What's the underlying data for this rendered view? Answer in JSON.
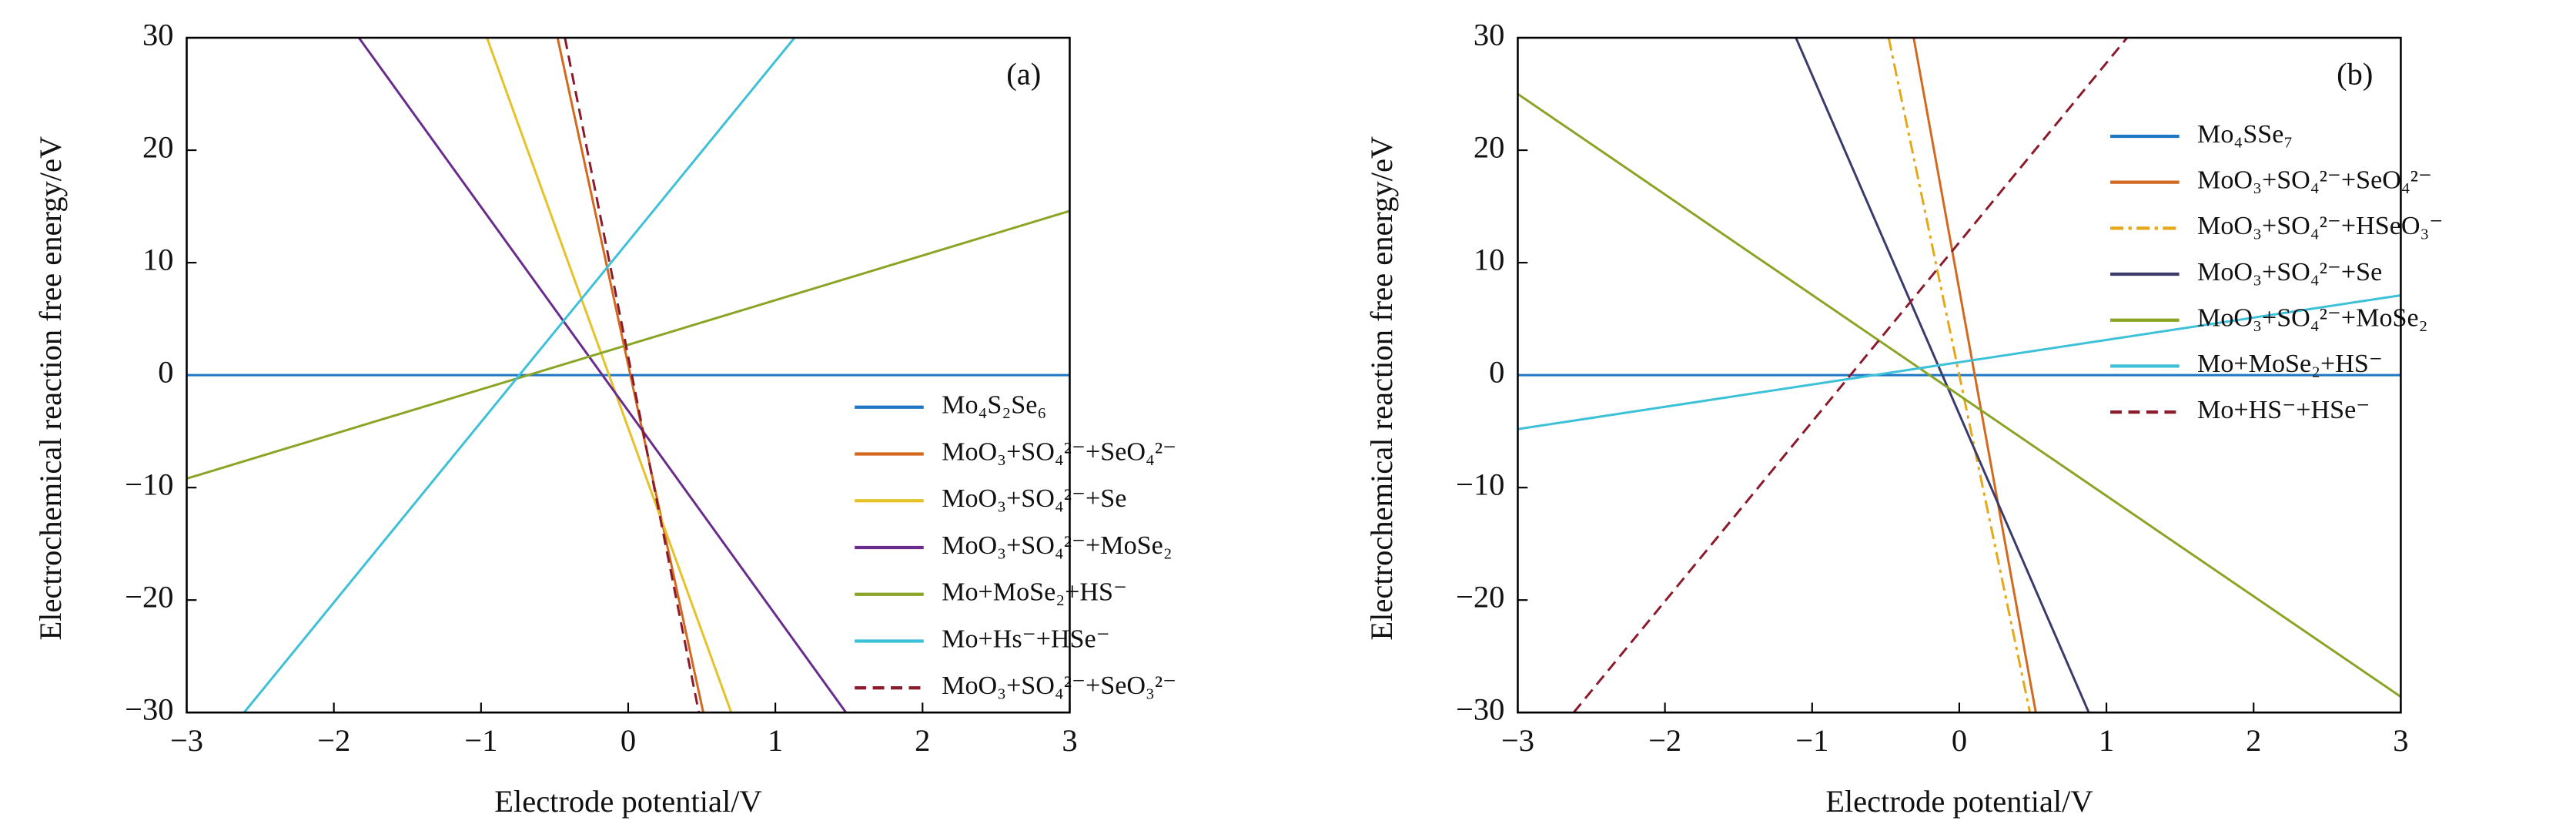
{
  "chart_data": [
    {
      "type": "line",
      "annotation": "(a)",
      "xlabel": "Electrode potential/V",
      "ylabel": "Electrochemical reaction free energy/eV",
      "xlim": [
        -3,
        3
      ],
      "ylim": [
        -30,
        30
      ],
      "xticks": [
        {
          "value": -3,
          "label": "−3"
        },
        {
          "value": -2,
          "label": "−2"
        },
        {
          "value": -1,
          "label": "−1"
        },
        0,
        1,
        2,
        3
      ],
      "yticks": [
        {
          "value": -30,
          "label": "−30"
        },
        {
          "value": -20,
          "label": "−20"
        },
        {
          "value": -10,
          "label": "−10"
        },
        0,
        10,
        20,
        30
      ],
      "legend": "lower right",
      "series": [
        {
          "name": "Mo₄S₂Se₆",
          "color": "#1f77c4",
          "dash": "solid",
          "x": [
            -3,
            3
          ],
          "values": [
            0,
            0
          ]
        },
        {
          "name": "MoO₃+SO₄²⁻+SeO₄²⁻",
          "color": "#d2691e",
          "dash": "solid",
          "x": [
            -0.48,
            0.51
          ],
          "values": [
            30,
            -30
          ]
        },
        {
          "name": "MoO₃+SO₄²⁻+Se",
          "color": "#e6c229",
          "dash": "solid",
          "x": [
            -0.96,
            0.7
          ],
          "values": [
            30,
            -30
          ]
        },
        {
          "name": "MoO₃+SO₄²⁻+MoSe₂",
          "color": "#6a2c8c",
          "dash": "solid",
          "x": [
            -1.83,
            1.48
          ],
          "values": [
            30,
            -30
          ]
        },
        {
          "name": "Mo+MoSe₂+HS⁻",
          "color": "#8aa526",
          "dash": "solid",
          "x": [
            -3,
            3
          ],
          "values": [
            -9.2,
            14.6
          ]
        },
        {
          "name": "Mo+Hs⁻+HSe⁻",
          "color": "#3cc1d8",
          "dash": "solid",
          "x": [
            -2.61,
            1.13
          ],
          "values": [
            -30,
            30
          ]
        },
        {
          "name": "MoO₃+SO₄²⁻+SeO₃²⁻",
          "color": "#8b1a2b",
          "dash": "dashed",
          "x": [
            -0.43,
            0.48
          ],
          "values": [
            30,
            -30
          ]
        }
      ]
    },
    {
      "type": "line",
      "annotation": "(b)",
      "xlabel": "Electrode potential/V",
      "ylabel": "Electrochemical reaction free energy/eV",
      "xlim": [
        -3,
        3
      ],
      "ylim": [
        -30,
        30
      ],
      "xticks": [
        {
          "value": -3,
          "label": "−3"
        },
        {
          "value": -2,
          "label": "−2"
        },
        {
          "value": -1,
          "label": "−1"
        },
        0,
        1,
        2,
        3
      ],
      "yticks": [
        {
          "value": -30,
          "label": "−30"
        },
        {
          "value": -20,
          "label": "−20"
        },
        {
          "value": -10,
          "label": "−10"
        },
        0,
        10,
        20,
        30
      ],
      "legend": "upper right",
      "series": [
        {
          "name": "Mo₄SSe₇",
          "color": "#1f77c4",
          "dash": "solid",
          "x": [
            -3,
            3
          ],
          "values": [
            0,
            0
          ]
        },
        {
          "name": "MoO₃+SO₄²⁻+SeO₄²⁻",
          "color": "#d2691e",
          "dash": "solid",
          "x": [
            -0.31,
            0.52
          ],
          "values": [
            30,
            -30
          ]
        },
        {
          "name": "MoO₃+SO₄²⁻+HSeO₃⁻",
          "color": "#e6a817",
          "dash": "dashdot",
          "x": [
            -0.48,
            0.48
          ],
          "values": [
            30,
            -30
          ]
        },
        {
          "name": "MoO₃+SO₄²⁻+Se",
          "color": "#3b3b6b",
          "dash": "solid",
          "x": [
            -1.11,
            0.88
          ],
          "values": [
            30,
            -30
          ]
        },
        {
          "name": "MoO₃+SO₄²⁻+MoSe₂",
          "color": "#8aa526",
          "dash": "solid",
          "x": [
            -3,
            3
          ],
          "values": [
            25,
            -28.6
          ]
        },
        {
          "name": "Mo+MoSe₂+HS⁻",
          "color": "#3cc1d8",
          "dash": "solid",
          "x": [
            -3,
            3
          ],
          "values": [
            -4.8,
            7.1
          ]
        },
        {
          "name": "Mo+HS⁻+HSe⁻",
          "color": "#8b1a2b",
          "dash": "dashed",
          "x": [
            -2.62,
            1.14
          ],
          "values": [
            -30,
            30
          ]
        }
      ]
    }
  ]
}
